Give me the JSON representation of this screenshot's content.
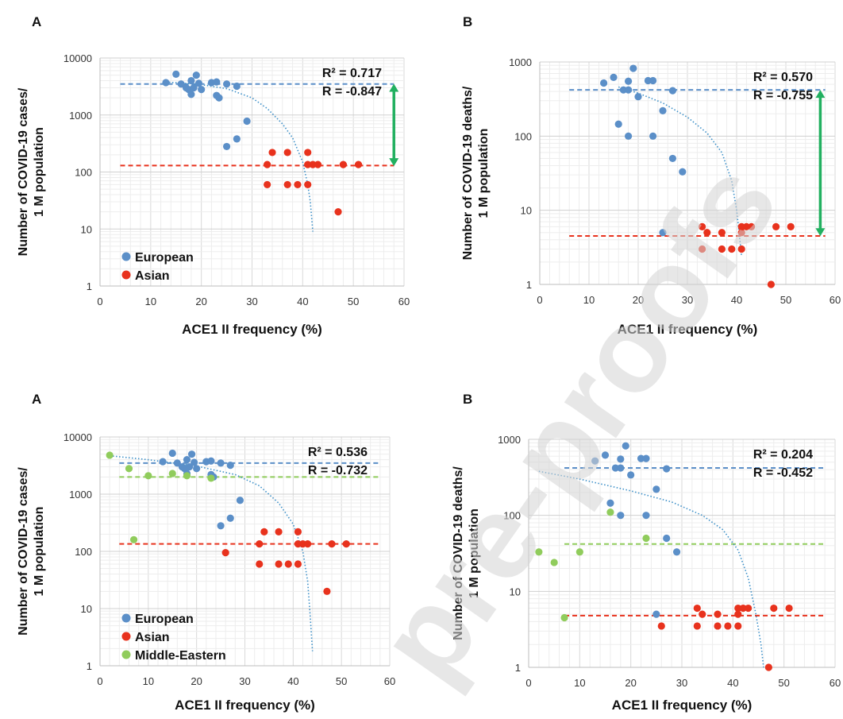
{
  "chart_data": [
    {
      "panel": "A",
      "type": "scatter",
      "xlabel": "ACE1 II frequency (%)",
      "ylabel_lines": [
        "Number of COVID-19 cases/",
        "1 M population"
      ],
      "x_ticks": [
        "0",
        "10",
        "20",
        "30",
        "40",
        "50",
        "60"
      ],
      "y_ticks": [
        "1",
        "10",
        "100",
        "1000",
        "10000"
      ],
      "xlim": [
        0,
        60
      ],
      "ylim": [
        1,
        10000
      ],
      "y_scale": "log",
      "grid": true,
      "stats": {
        "r2": "R² = 0.717",
        "r": "R = -0.847"
      },
      "legend": {
        "position": "bottom-left",
        "entries": [
          {
            "name": "European",
            "color": "#5b8fc8"
          },
          {
            "name": "Asian",
            "color": "#e8321d"
          }
        ]
      },
      "series": [
        {
          "name": "European",
          "color": "#5b8fc8",
          "points": [
            [
              13,
              3700
            ],
            [
              15,
              5200
            ],
            [
              16,
              3500
            ],
            [
              17,
              3000
            ],
            [
              17.5,
              2800
            ],
            [
              18,
              4000
            ],
            [
              18,
              2300
            ],
            [
              18.5,
              3000
            ],
            [
              19,
              5000
            ],
            [
              19.5,
              3600
            ],
            [
              20,
              2800
            ],
            [
              22,
              3700
            ],
            [
              23,
              3800
            ],
            [
              23,
              2200
            ],
            [
              23.5,
              2000
            ],
            [
              25,
              3500
            ],
            [
              25,
              280
            ],
            [
              27,
              3200
            ],
            [
              27,
              380
            ],
            [
              29,
              780
            ]
          ]
        },
        {
          "name": "Asian",
          "color": "#e8321d",
          "points": [
            [
              33,
              135
            ],
            [
              33,
              60
            ],
            [
              34,
              220
            ],
            [
              37,
              220
            ],
            [
              37,
              60
            ],
            [
              39,
              60
            ],
            [
              41,
              220
            ],
            [
              41,
              135
            ],
            [
              41,
              60
            ],
            [
              42,
              135
            ],
            [
              43,
              135
            ],
            [
              47,
              20
            ],
            [
              48,
              135
            ],
            [
              51,
              135
            ]
          ]
        }
      ],
      "mean_lines": [
        {
          "color": "#5b8fc8",
          "y": 3500,
          "x": [
            4,
            58
          ]
        },
        {
          "color": "#e8321d",
          "y": 130,
          "x": [
            4,
            58
          ]
        }
      ],
      "trend": {
        "color": "#3b8fc8",
        "points": [
          [
            13,
            3800
          ],
          [
            20,
            3400
          ],
          [
            25,
            2900
          ],
          [
            30,
            2000
          ],
          [
            33,
            1300
          ],
          [
            36,
            700
          ],
          [
            38,
            400
          ],
          [
            40,
            150
          ],
          [
            41,
            60
          ],
          [
            41.5,
            30
          ],
          [
            42,
            9
          ]
        ]
      },
      "gap_arrow": {
        "color": "#22b060",
        "x": 58,
        "y1": 3300,
        "y2": 135
      }
    },
    {
      "panel": "B",
      "type": "scatter",
      "xlabel": "ACE1 II frequency (%)",
      "ylabel_lines": [
        "Number of COVID-19 deaths/",
        "1 M population"
      ],
      "x_ticks": [
        "0",
        "10",
        "20",
        "30",
        "40",
        "50",
        "60"
      ],
      "y_ticks": [
        "1",
        "10",
        "100",
        "1000"
      ],
      "xlim": [
        0,
        60
      ],
      "ylim": [
        1,
        1000
      ],
      "y_scale": "log",
      "grid": true,
      "stats": {
        "r2": "R² = 0.570",
        "r": "R = -0.755"
      },
      "series": [
        {
          "name": "European",
          "color": "#5b8fc8",
          "points": [
            [
              13,
              520
            ],
            [
              15,
              620
            ],
            [
              16,
              145
            ],
            [
              17,
              420
            ],
            [
              18,
              550
            ],
            [
              18,
              420
            ],
            [
              18,
              100
            ],
            [
              19,
              820
            ],
            [
              20,
              340
            ],
            [
              22,
              560
            ],
            [
              23,
              560
            ],
            [
              23,
              100
            ],
            [
              25,
              220
            ],
            [
              25,
              5
            ],
            [
              27,
              410
            ],
            [
              27,
              50
            ],
            [
              29,
              33
            ]
          ]
        },
        {
          "name": "Asian",
          "color": "#e8321d",
          "points": [
            [
              33,
              6
            ],
            [
              33,
              3
            ],
            [
              34,
              5
            ],
            [
              37,
              5
            ],
            [
              37,
              3
            ],
            [
              39,
              3
            ],
            [
              41,
              6
            ],
            [
              41,
              5
            ],
            [
              41,
              3
            ],
            [
              42,
              6
            ],
            [
              43,
              6
            ],
            [
              47,
              1
            ],
            [
              48,
              6
            ],
            [
              51,
              6
            ]
          ]
        }
      ],
      "mean_lines": [
        {
          "color": "#5b8fc8",
          "y": 420,
          "x": [
            6,
            58
          ]
        },
        {
          "color": "#e8321d",
          "y": 4.5,
          "x": [
            6,
            58
          ]
        }
      ],
      "trend": {
        "color": "#3b8fc8",
        "points": [
          [
            16,
            460
          ],
          [
            20,
            380
          ],
          [
            25,
            280
          ],
          [
            30,
            180
          ],
          [
            34,
            110
          ],
          [
            37,
            60
          ],
          [
            39,
            25
          ],
          [
            40,
            10
          ],
          [
            40.5,
            5
          ],
          [
            41,
            2.4
          ]
        ]
      },
      "gap_arrow": {
        "color": "#22b060",
        "x": 57,
        "y1": 400,
        "y2": 4.7
      }
    },
    {
      "panel": "A",
      "type": "scatter",
      "xlabel": "ACE1 II frequency (%)",
      "ylabel_lines": [
        "Number of COVID-19 cases/",
        "1 M population"
      ],
      "x_ticks": [
        "0",
        "10",
        "20",
        "30",
        "40",
        "50",
        "60"
      ],
      "y_ticks": [
        "1",
        "10",
        "100",
        "1000",
        "10000"
      ],
      "xlim": [
        0,
        60
      ],
      "ylim": [
        1,
        10000
      ],
      "y_scale": "log",
      "grid": true,
      "stats": {
        "r2": "R² = 0.536",
        "r": "R = -0.732"
      },
      "legend": {
        "position": "bottom-left",
        "entries": [
          {
            "name": "European",
            "color": "#5b8fc8"
          },
          {
            "name": "Asian",
            "color": "#e8321d"
          },
          {
            "name": "Middle-Eastern",
            "color": "#90cc5c"
          }
        ]
      },
      "series": [
        {
          "name": "European",
          "color": "#5b8fc8",
          "points": [
            [
              13,
              3700
            ],
            [
              15,
              5200
            ],
            [
              16,
              3500
            ],
            [
              17,
              3000
            ],
            [
              17.5,
              2800
            ],
            [
              18,
              4000
            ],
            [
              18,
              2300
            ],
            [
              18.5,
              3000
            ],
            [
              19,
              5000
            ],
            [
              19.5,
              3600
            ],
            [
              20,
              2800
            ],
            [
              22,
              3700
            ],
            [
              23,
              3800
            ],
            [
              23,
              2200
            ],
            [
              23.5,
              2000
            ],
            [
              25,
              3500
            ],
            [
              25,
              280
            ],
            [
              27,
              3200
            ],
            [
              27,
              380
            ],
            [
              29,
              780
            ]
          ]
        },
        {
          "name": "Asian",
          "color": "#e8321d",
          "points": [
            [
              26,
              95
            ],
            [
              33,
              135
            ],
            [
              33,
              60
            ],
            [
              34,
              220
            ],
            [
              37,
              220
            ],
            [
              37,
              60
            ],
            [
              39,
              60
            ],
            [
              41,
              220
            ],
            [
              41,
              135
            ],
            [
              41,
              60
            ],
            [
              42,
              135
            ],
            [
              43,
              135
            ],
            [
              47,
              20
            ],
            [
              48,
              135
            ],
            [
              51,
              135
            ]
          ]
        },
        {
          "name": "Middle-Eastern",
          "color": "#90cc5c",
          "points": [
            [
              2,
              4800
            ],
            [
              6,
              2800
            ],
            [
              7,
              160
            ],
            [
              10,
              2100
            ],
            [
              15,
              2300
            ],
            [
              18,
              2100
            ],
            [
              23,
              1900
            ]
          ]
        }
      ],
      "mean_lines": [
        {
          "color": "#5b8fc8",
          "y": 3500,
          "x": [
            4,
            58
          ]
        },
        {
          "color": "#90cc5c",
          "y": 2000,
          "x": [
            4,
            58
          ]
        },
        {
          "color": "#e8321d",
          "y": 135,
          "x": [
            4,
            58
          ]
        }
      ],
      "trend": {
        "color": "#3b8fc8",
        "points": [
          [
            2,
            4700
          ],
          [
            10,
            4000
          ],
          [
            20,
            3100
          ],
          [
            28,
            2200
          ],
          [
            33,
            1400
          ],
          [
            37,
            700
          ],
          [
            40,
            300
          ],
          [
            42,
            100
          ],
          [
            43,
            30
          ],
          [
            43.5,
            8
          ],
          [
            44,
            1.8
          ]
        ]
      }
    },
    {
      "panel": "B",
      "type": "scatter",
      "xlabel": "ACE1 II frequency (%)",
      "ylabel_lines": [
        "Number of COVID-19 deaths/",
        "1 M population"
      ],
      "x_ticks": [
        "0",
        "10",
        "20",
        "30",
        "40",
        "50",
        "60"
      ],
      "y_ticks": [
        "1",
        "10",
        "100",
        "1000"
      ],
      "xlim": [
        0,
        60
      ],
      "ylim": [
        1,
        1000
      ],
      "y_scale": "log",
      "grid": true,
      "stats": {
        "r2": "R² = 0.204",
        "r": "R = -0.452"
      },
      "series": [
        {
          "name": "European",
          "color": "#5b8fc8",
          "points": [
            [
              13,
              520
            ],
            [
              15,
              620
            ],
            [
              16,
              145
            ],
            [
              17,
              420
            ],
            [
              18,
              550
            ],
            [
              18,
              420
            ],
            [
              18,
              100
            ],
            [
              19,
              820
            ],
            [
              20,
              340
            ],
            [
              22,
              560
            ],
            [
              23,
              560
            ],
            [
              23,
              100
            ],
            [
              25,
              220
            ],
            [
              25,
              5
            ],
            [
              27,
              410
            ],
            [
              27,
              50
            ],
            [
              29,
              33
            ]
          ]
        },
        {
          "name": "Asian",
          "color": "#e8321d",
          "points": [
            [
              26,
              3.5
            ],
            [
              33,
              6
            ],
            [
              33,
              3.5
            ],
            [
              34,
              5
            ],
            [
              37,
              5
            ],
            [
              37,
              3.5
            ],
            [
              39,
              3.5
            ],
            [
              41,
              6
            ],
            [
              41,
              5
            ],
            [
              41,
              3.5
            ],
            [
              42,
              6
            ],
            [
              43,
              6
            ],
            [
              47,
              1
            ],
            [
              48,
              6
            ],
            [
              51,
              6
            ]
          ]
        },
        {
          "name": "Middle-Eastern",
          "color": "#90cc5c",
          "points": [
            [
              2,
              33
            ],
            [
              5,
              24
            ],
            [
              7,
              4.5
            ],
            [
              10,
              33
            ],
            [
              16,
              110
            ],
            [
              23,
              50
            ]
          ]
        }
      ],
      "mean_lines": [
        {
          "color": "#5b8fc8",
          "y": 420,
          "x": [
            7,
            58
          ]
        },
        {
          "color": "#90cc5c",
          "y": 42,
          "x": [
            7,
            58
          ]
        },
        {
          "color": "#e8321d",
          "y": 4.8,
          "x": [
            7,
            58
          ]
        }
      ],
      "trend": {
        "color": "#3b8fc8",
        "points": [
          [
            2,
            380
          ],
          [
            10,
            300
          ],
          [
            20,
            210
          ],
          [
            28,
            150
          ],
          [
            34,
            100
          ],
          [
            38,
            65
          ],
          [
            41,
            35
          ],
          [
            43,
            15
          ],
          [
            44.5,
            5
          ],
          [
            45.5,
            2
          ],
          [
            46,
            1
          ]
        ]
      }
    }
  ],
  "watermark": {
    "text": "pre-proofs",
    "color": "#d4d4d4"
  }
}
